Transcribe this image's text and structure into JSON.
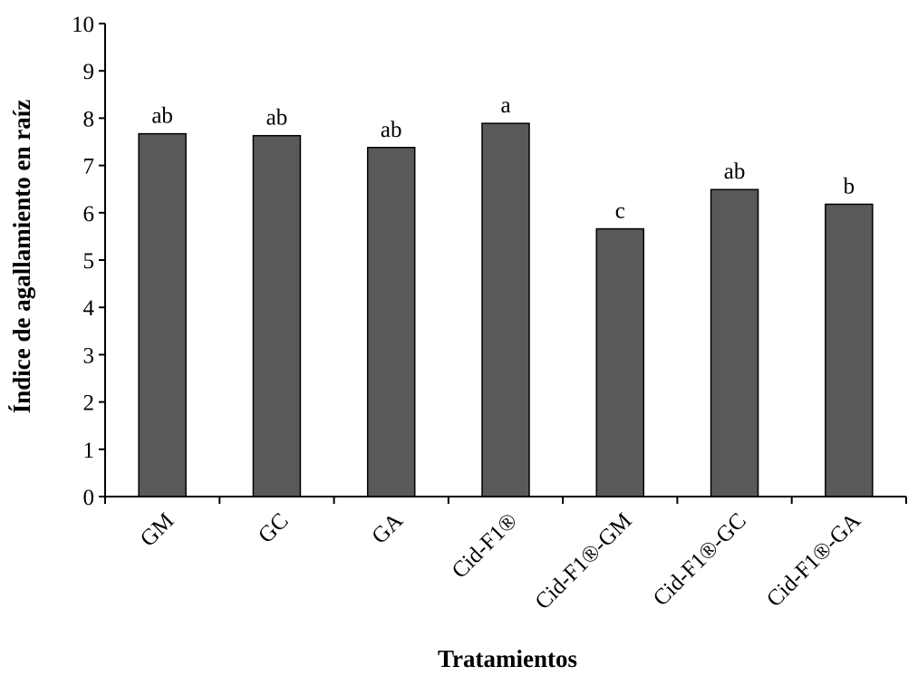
{
  "chart_data": {
    "type": "bar",
    "title": "",
    "xlabel": "Tratamientos",
    "ylabel": "Índice de agallamiento en raíz",
    "categories": [
      "GM",
      "GC",
      "GA",
      "Cid-F1®",
      "Cid-F1®-GM",
      "Cid-F1®-GC",
      "Cid-F1®-GA"
    ],
    "values": [
      7.67,
      7.63,
      7.38,
      7.89,
      5.66,
      6.49,
      6.18
    ],
    "data_labels": [
      "ab",
      "ab",
      "ab",
      "a",
      "c",
      "ab",
      "b"
    ],
    "ylim": [
      0,
      10
    ],
    "yticks": [
      "0",
      "1",
      "2",
      "3",
      "4",
      "5",
      "6",
      "7",
      "8",
      "9",
      "10"
    ],
    "grid": false,
    "bar_color": "#595959",
    "bar_edge_color": "#000000"
  }
}
